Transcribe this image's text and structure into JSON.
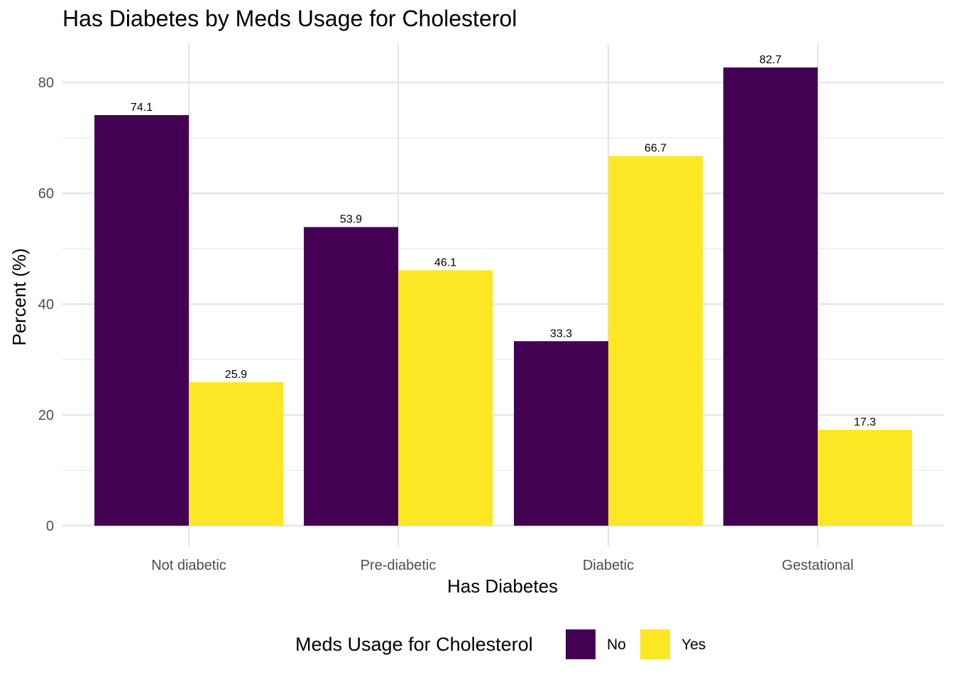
{
  "chart_data": {
    "type": "bar",
    "title": "Has Diabetes by Meds Usage for Cholesterol",
    "xlabel": "Has Diabetes",
    "ylabel": "Percent (%)",
    "categories": [
      "Not diabetic",
      "Pre-diabetic",
      "Diabetic",
      "Gestational"
    ],
    "series": [
      {
        "name": "No",
        "color": "#440154",
        "values": [
          74.1,
          53.9,
          33.3,
          82.7
        ],
        "labels": [
          "74.1",
          "53.9",
          "33.3",
          "82.7"
        ]
      },
      {
        "name": "Yes",
        "color": "#FDE725",
        "values": [
          25.9,
          46.1,
          66.7,
          17.3
        ],
        "labels": [
          "25.9",
          "46.1",
          "66.7",
          "17.3"
        ]
      }
    ],
    "ylim": [
      0,
      87.5
    ],
    "yticks": [
      0,
      20,
      40,
      60,
      80
    ],
    "ytick_labels": [
      "0",
      "20",
      "40",
      "60",
      "80"
    ],
    "grid": true,
    "legend": {
      "title": "Meds Usage for Cholesterol",
      "position": "bottom"
    }
  }
}
